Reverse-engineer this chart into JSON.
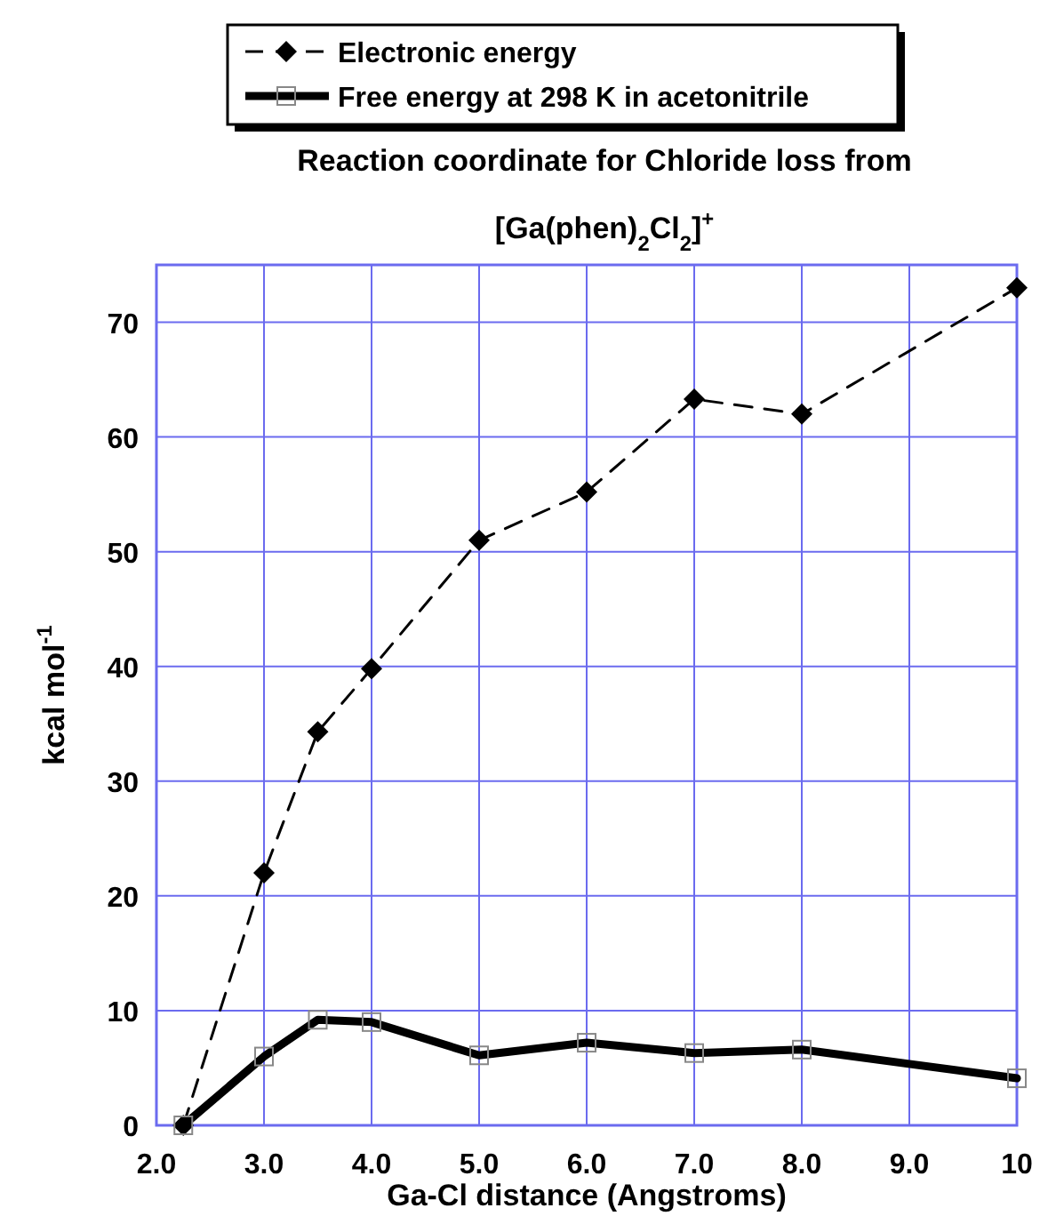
{
  "chart_data": {
    "type": "line",
    "title": "Reaction coordinate for Chloride loss from\n[Ga(phen)$_{2}$Cl$_{2}$]$^{+}$",
    "xlabel": "Ga-Cl distance (Angstroms)",
    "ylabel": "kcal mol$^{-1}$",
    "x": [
      2.25,
      3.0,
      3.5,
      4.0,
      5.0,
      6.0,
      7.0,
      8.0,
      10.0
    ],
    "series": [
      {
        "name": "Electronic energy",
        "color": "#000000",
        "values": [
          0,
          22,
          34.3,
          39.8,
          51,
          55.2,
          63.3,
          62,
          73
        ],
        "marker": "diamond",
        "line_style": "dashed"
      },
      {
        "name": "Free energy at 298 K in acetonitrile",
        "color": "#000000",
        "values": [
          0,
          6,
          9.2,
          9,
          6.1,
          7.2,
          6.3,
          6.6,
          4.1
        ],
        "marker": "square",
        "line_style": "solid"
      }
    ],
    "xlim": [
      2,
      10
    ],
    "xticks": [
      {
        "value": 2,
        "label": "2.0"
      },
      {
        "value": 3,
        "label": "3.0"
      },
      {
        "value": 4,
        "label": "4.0"
      },
      {
        "value": 5,
        "label": "5.0"
      },
      {
        "value": 6,
        "label": "6.0"
      },
      {
        "value": 7,
        "label": "7.0"
      },
      {
        "value": 8,
        "label": "8.0"
      },
      {
        "value": 9,
        "label": "9.0"
      },
      10
    ],
    "ylim": [
      0,
      75
    ],
    "yticks": [
      0,
      10,
      20,
      30,
      40,
      50,
      60,
      70
    ],
    "grid": true,
    "legend": "top"
  }
}
